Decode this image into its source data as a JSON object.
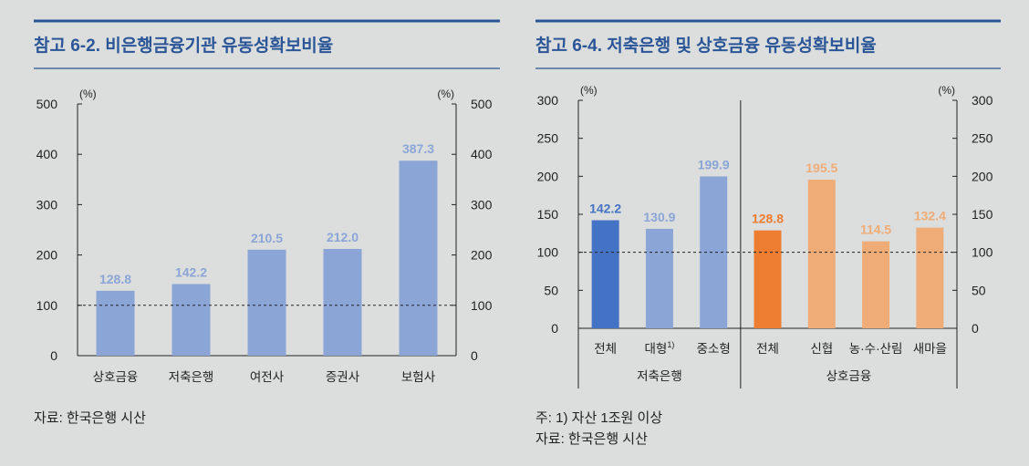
{
  "chart_data": [
    {
      "type": "bar",
      "title": "참고 6-2. 비은행금융기관 유동성확보비율",
      "unit_left": "(%)",
      "unit_right": "(%)",
      "categories": [
        "상호금융",
        "저축은행",
        "여전사",
        "증권사",
        "보험사"
      ],
      "values": [
        128.8,
        142.2,
        210.5,
        212.0,
        387.3
      ],
      "value_labels": [
        "128.8",
        "142.2",
        "210.5",
        "212.0",
        "387.3"
      ],
      "ylim": [
        0,
        500
      ],
      "yticks": [
        "0",
        "100",
        "200",
        "300",
        "400",
        "500"
      ],
      "reference_line": 100,
      "colors": [
        "#8aa5d6",
        "#8aa5d6",
        "#8aa5d6",
        "#8aa5d6",
        "#8aa5d6"
      ],
      "label_color": "#8aa5d6",
      "source": "자료: 한국은행 시산"
    },
    {
      "type": "bar",
      "title": "참고 6-4. 저축은행 및 상호금융 유동성확보비율",
      "unit_left": "(%)",
      "unit_right": "(%)",
      "categories": [
        "전체",
        "대형",
        "중소형",
        "전체",
        "신협",
        "농·수·산림",
        "새마을"
      ],
      "category_superscripts": [
        "",
        "1)",
        "",
        "",
        "",
        "",
        ""
      ],
      "groups": [
        {
          "name": "저축은행",
          "count": 3
        },
        {
          "name": "상호금융",
          "count": 4
        }
      ],
      "values": [
        142.2,
        130.9,
        199.9,
        128.8,
        195.5,
        114.5,
        132.4
      ],
      "value_labels": [
        "142.2",
        "130.9",
        "199.9",
        "128.8",
        "195.5",
        "114.5",
        "132.4"
      ],
      "ylim": [
        0,
        300
      ],
      "yticks": [
        "0",
        "50",
        "100",
        "150",
        "200",
        "250",
        "300"
      ],
      "reference_line": 100,
      "colors": [
        "#4472c4",
        "#8aa5d6",
        "#8aa5d6",
        "#ed7d31",
        "#f0ac76",
        "#f0ac76",
        "#f0ac76"
      ],
      "label_colors": [
        "#4472c4",
        "#8aa5d6",
        "#8aa5d6",
        "#ed7d31",
        "#f0ac76",
        "#f0ac76",
        "#f0ac76"
      ],
      "note": "주: 1) 자산 1조원 이상",
      "source": "자료: 한국은행 시산"
    }
  ],
  "colors": {
    "title": "#2a5597",
    "rule": "#2a5597",
    "axis": "#222222"
  }
}
